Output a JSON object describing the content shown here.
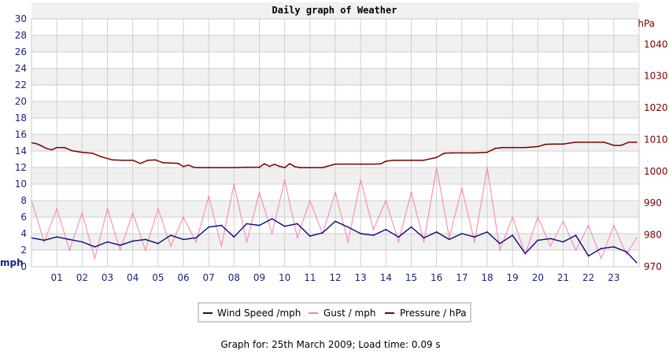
{
  "chart_data": {
    "type": "line",
    "title": "Daily graph of Weather",
    "footer": "Graph for: 25th March 2009; Load time: 0.09 s",
    "colors": {
      "wind": "#0a0a7a",
      "gust": "#ff7fa8",
      "pressure": "#7a0000",
      "band": "#f0f0f0",
      "grid": "#cfcfcf",
      "left_axis_text": "#1a237e",
      "right_axis_text": "#7a0000"
    },
    "grid": true,
    "legend_position": "bottom",
    "left_axis": {
      "unit": "mph",
      "range": [
        0,
        30
      ],
      "ticks": [
        "0",
        "2",
        "4",
        "6",
        "8",
        "10",
        "12",
        "14",
        "16",
        "18",
        "20",
        "22",
        "24",
        "26",
        "28",
        "30"
      ]
    },
    "right_axis": {
      "unit": "hPa",
      "range": [
        970,
        1048
      ],
      "ticks": [
        "970",
        "980",
        "990",
        "1000",
        "1010",
        "1020",
        "1030",
        "1040"
      ]
    },
    "x_axis": {
      "range": [
        0,
        24
      ],
      "ticks": [
        "01",
        "02",
        "03",
        "04",
        "05",
        "06",
        "07",
        "08",
        "09",
        "10",
        "11",
        "12",
        "13",
        "14",
        "15",
        "16",
        "17",
        "18",
        "19",
        "20",
        "21",
        "22",
        "23"
      ]
    },
    "series": [
      {
        "key": "wind",
        "name": "Wind Speed /mph",
        "x": [
          0,
          0.5,
          1,
          1.5,
          2,
          2.5,
          3,
          3.5,
          4,
          4.5,
          5,
          5.5,
          6,
          6.5,
          7,
          7.5,
          8,
          8.5,
          9,
          9.5,
          10,
          10.5,
          11,
          11.5,
          12,
          12.5,
          13,
          13.5,
          14,
          14.5,
          15,
          15.5,
          16,
          16.5,
          17,
          17.5,
          18,
          18.5,
          19,
          19.5,
          20,
          20.5,
          21,
          21.5,
          22,
          22.5,
          23,
          23.5,
          23.9
        ],
        "values": [
          3.5,
          3.2,
          3.6,
          3.3,
          3.0,
          2.4,
          3.0,
          2.6,
          3.1,
          3.3,
          2.8,
          3.8,
          3.3,
          3.5,
          4.8,
          5.0,
          3.6,
          5.2,
          5.0,
          5.8,
          4.9,
          5.2,
          3.7,
          4.1,
          5.5,
          4.8,
          4.0,
          3.8,
          4.5,
          3.6,
          4.8,
          3.5,
          4.2,
          3.3,
          4.0,
          3.6,
          4.2,
          2.8,
          3.8,
          1.6,
          3.2,
          3.4,
          3.0,
          3.8,
          1.3,
          2.2,
          2.4,
          1.8,
          0.5
        ]
      },
      {
        "key": "gust",
        "name": "Gust / mph",
        "x": [
          0,
          0.5,
          1,
          1.5,
          2,
          2.5,
          3,
          3.5,
          4,
          4.5,
          5,
          5.5,
          6,
          6.5,
          7,
          7.5,
          8,
          8.5,
          9,
          9.5,
          10,
          10.5,
          11,
          11.5,
          12,
          12.5,
          13,
          13.5,
          14,
          14.5,
          15,
          15.5,
          16,
          16.5,
          17,
          17.5,
          18,
          18.5,
          19,
          19.5,
          20,
          20.5,
          21,
          21.5,
          22,
          22.5,
          23,
          23.5,
          23.9
        ],
        "values": [
          8.0,
          3.0,
          7.0,
          2.0,
          6.5,
          1.0,
          7.0,
          2.0,
          6.5,
          2.0,
          7.0,
          2.5,
          6.0,
          3.0,
          8.5,
          2.5,
          10.0,
          3.0,
          9.0,
          4.0,
          10.5,
          3.5,
          8.0,
          4.0,
          9.0,
          3.0,
          10.5,
          4.5,
          8.0,
          3.0,
          9.0,
          3.0,
          12.0,
          3.5,
          9.5,
          3.0,
          12.0,
          2.0,
          6.0,
          1.5,
          6.0,
          2.5,
          5.5,
          2.0,
          5.0,
          1.0,
          5.0,
          1.5,
          3.5
        ]
      },
      {
        "key": "pressure",
        "name": "Pressure / hPa",
        "axis": "right",
        "x": [
          0,
          0.2,
          0.4,
          0.6,
          0.8,
          1,
          1.3,
          1.6,
          2,
          2.4,
          2.8,
          3.2,
          3.6,
          4,
          4.3,
          4.6,
          4.9,
          5.2,
          5.5,
          5.8,
          6,
          6.2,
          6.4,
          6.6,
          7,
          7.5,
          8,
          8.5,
          9,
          9.2,
          9.4,
          9.6,
          9.8,
          10,
          10.2,
          10.4,
          10.6,
          10.8,
          11,
          11.5,
          12,
          12.5,
          13,
          13.5,
          13.8,
          14,
          14.3,
          14.6,
          15,
          15.5,
          16,
          16.3,
          16.6,
          17,
          17.5,
          18,
          18.3,
          18.6,
          19,
          19.5,
          20,
          20.3,
          20.6,
          21,
          21.5,
          22,
          22.3,
          22.6,
          23,
          23.3,
          23.6,
          23.9
        ],
        "values": [
          1009,
          1008.7,
          1008,
          1007.2,
          1006.8,
          1007.5,
          1007.5,
          1006.5,
          1006,
          1005.7,
          1004.5,
          1003.6,
          1003.5,
          1003.5,
          1002.5,
          1003.5,
          1003.6,
          1002.7,
          1002.6,
          1002.5,
          1001.5,
          1002,
          1001.3,
          1001.2,
          1001.2,
          1001.2,
          1001.2,
          1001.3,
          1001.3,
          1002.4,
          1001.6,
          1002.2,
          1001.6,
          1001.2,
          1002.4,
          1001.5,
          1001.2,
          1001.2,
          1001.2,
          1001.2,
          1002.3,
          1002.3,
          1002.3,
          1002.3,
          1002.4,
          1003.2,
          1003.5,
          1003.5,
          1003.5,
          1003.5,
          1004.4,
          1005.7,
          1005.8,
          1005.8,
          1005.8,
          1006,
          1007.2,
          1007.5,
          1007.5,
          1007.5,
          1007.8,
          1008.5,
          1008.6,
          1008.6,
          1009.2,
          1009.2,
          1009.2,
          1009.2,
          1008.2,
          1008.2,
          1009.2,
          1009.2
        ]
      }
    ]
  }
}
